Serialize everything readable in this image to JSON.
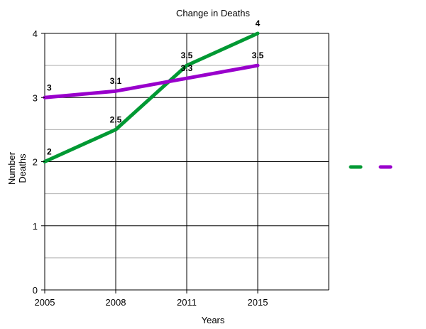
{
  "chart_data": {
    "type": "line",
    "title": "Change in Deaths",
    "xlabel": "Years",
    "ylabel_lines": [
      "Number",
      "Deaths"
    ],
    "categories": [
      "2005",
      "2008",
      "2011",
      "2015"
    ],
    "x_tick_labels": [
      "2005",
      "2008",
      "2011",
      "2015"
    ],
    "y_tick_labels": [
      "0",
      "1",
      "2",
      "3",
      "4"
    ],
    "ylim": [
      0,
      4
    ],
    "y_major_step": 1,
    "y_minor_step": 0.5,
    "grid": true,
    "legend_placement": "right",
    "series": [
      {
        "color": "#009933",
        "values": [
          2,
          2.5,
          3.5,
          4
        ],
        "labels": [
          "2",
          "2.5",
          "3.5",
          "4"
        ]
      },
      {
        "color": "#9900cc",
        "values": [
          3,
          3.1,
          3.3,
          3.5
        ],
        "labels": [
          "3",
          "3.1",
          "3.3",
          "3.5"
        ]
      }
    ]
  }
}
